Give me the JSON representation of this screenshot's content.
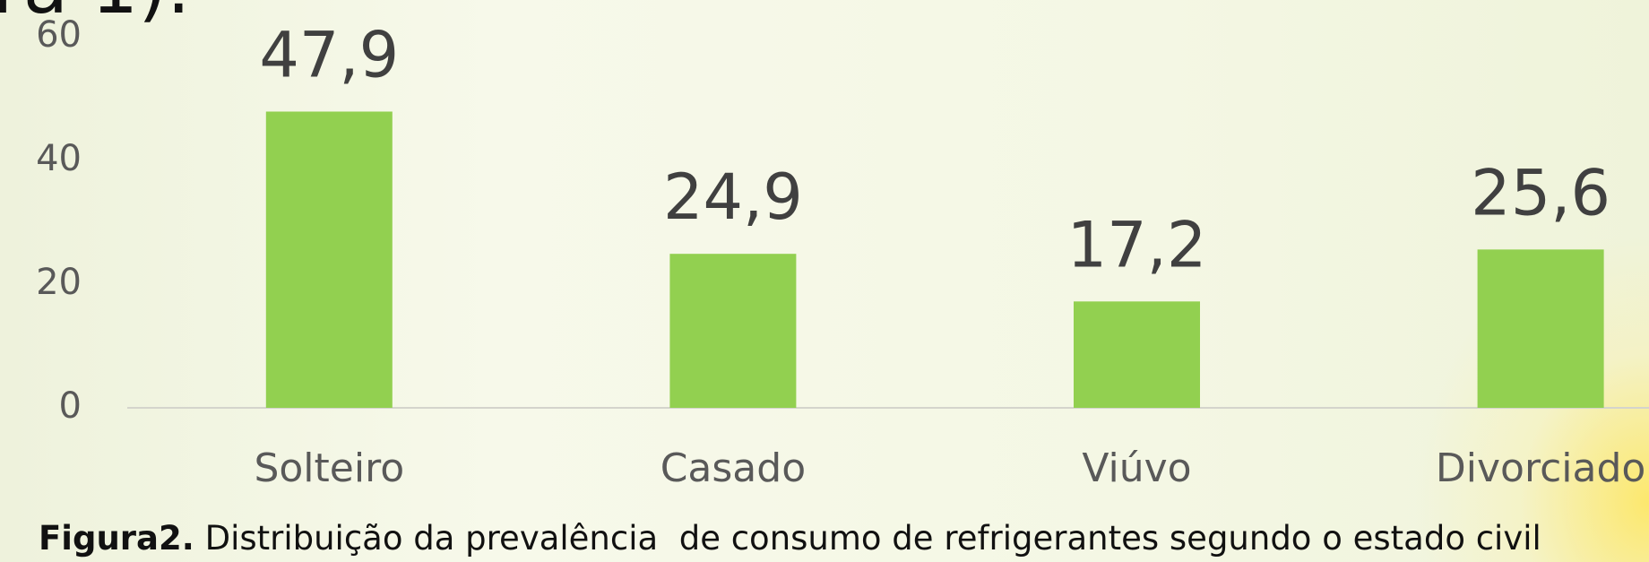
{
  "fragment": "ra 1).",
  "chart_data": {
    "type": "bar",
    "categories": [
      "Solteiro",
      "Casado",
      "Viúvo",
      "Divorciado"
    ],
    "values": [
      47.9,
      24.9,
      17.2,
      25.6
    ],
    "value_labels": [
      "47,9",
      "24,9",
      "17,2",
      "25,6"
    ],
    "color": "#92d050",
    "ylim": [
      0,
      60
    ],
    "yticks": [
      0,
      20,
      40,
      60
    ],
    "grid": false,
    "caption": {
      "label": "Figura2.",
      "text": " Distribuição da prevalência  de consumo de refrigerantes segundo o estado civil"
    }
  }
}
